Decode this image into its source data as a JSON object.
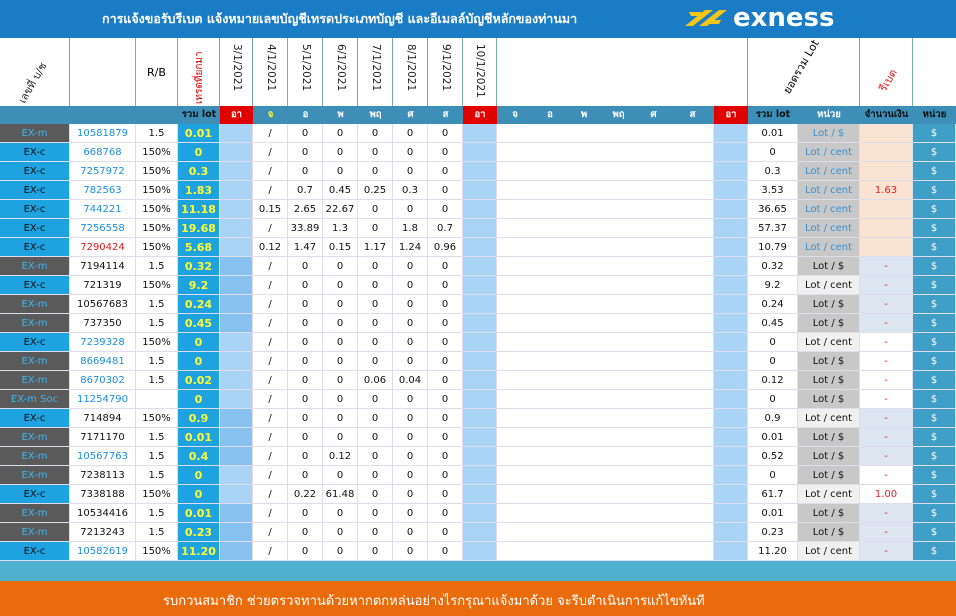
{
  "banner": {
    "title": "การแจ้งขอรับรีเบต  แจ้งหมายเลขบัญชีเทรดประเภทบัญชี และอีเมลล์บัญชีหลักของท่านมา",
    "logo_text": "exness"
  },
  "header": {
    "account_label": "เลขที่ บ/ช",
    "rb_label": "R/B",
    "previous_label": "เทรดที่ยกมา",
    "dates": [
      "3/1/2021",
      "4/1/2021",
      "5/1/2021",
      "6/1/2021",
      "7/1/2021",
      "8/1/2021",
      "9/1/2021",
      "10/1/2021"
    ],
    "total_lot_label": "ยอดรวม Lot",
    "rebate_label": "รีเบต"
  },
  "subheader": {
    "total_lot": "รวม lot",
    "days_week1": [
      "อา",
      "จ",
      "อ",
      "พ",
      "พฤ",
      "ศ",
      "ส"
    ],
    "days_week2": [
      "อา",
      "จ",
      "อ",
      "พ",
      "พฤ",
      "ศ",
      "ส"
    ],
    "day_end": "อา",
    "total_lot2": "รวม lot",
    "unit": "หน่วย",
    "amount": "จำนวนเงิน",
    "unit2": "หน่วย"
  },
  "rows": [
    {
      "type": "EX-m",
      "acct": "10581879",
      "rb": "1.5",
      "total": "0.01",
      "d": [
        "/",
        "0",
        "0",
        "0",
        "0",
        "0"
      ],
      "sum": "0.01",
      "unit": "Lot / $",
      "amount": "",
      "cur": "$",
      "dark": true,
      "blue": true,
      "grp": 1
    },
    {
      "type": "EX-c",
      "acct": "668768",
      "rb": "150%",
      "total": "0",
      "d": [
        "/",
        "0",
        "0",
        "0",
        "0",
        "0"
      ],
      "sum": "0",
      "unit": "Lot / cent",
      "amount": "",
      "cur": "$",
      "dark": false,
      "blue": true,
      "grp": 1
    },
    {
      "type": "EX-c",
      "acct": "7257972",
      "rb": "150%",
      "total": "0.3",
      "d": [
        "/",
        "0",
        "0",
        "0",
        "0",
        "0"
      ],
      "sum": "0.3",
      "unit": "Lot / cent",
      "amount": "",
      "cur": "$",
      "dark": false,
      "blue": true,
      "grp": 1
    },
    {
      "type": "EX-c",
      "acct": "782563",
      "rb": "150%",
      "total": "1.83",
      "d": [
        "/",
        "0.7",
        "0.45",
        "0.25",
        "0.3",
        "0"
      ],
      "sum": "3.53",
      "unit": "Lot / cent",
      "amount": "1.63",
      "cur": "$",
      "dark": false,
      "blue": true,
      "grp": 1
    },
    {
      "type": "EX-c",
      "acct": "744221",
      "rb": "150%",
      "total": "11.18",
      "d": [
        "0.15",
        "2.65",
        "22.67",
        "0",
        "0",
        "0"
      ],
      "sum": "36.65",
      "unit": "Lot / cent",
      "amount": "",
      "cur": "$",
      "dark": false,
      "blue": true,
      "grp": 1
    },
    {
      "type": "EX-c",
      "acct": "7256558",
      "rb": "150%",
      "total": "19.68",
      "d": [
        "/",
        "33.89",
        "1.3",
        "0",
        "1.8",
        "0.7"
      ],
      "sum": "57.37",
      "unit": "Lot / cent",
      "amount": "",
      "cur": "$",
      "dark": false,
      "blue": true,
      "grp": 1
    },
    {
      "type": "EX-c",
      "acct": "7290424",
      "rb": "150%",
      "total": "5.68",
      "d": [
        "0.12",
        "1.47",
        "0.15",
        "1.17",
        "1.24",
        "0.96"
      ],
      "sum": "10.79",
      "unit": "Lot / cent",
      "amount": "",
      "cur": "$",
      "dark": false,
      "blue": false,
      "red": true,
      "grp": 1
    },
    {
      "type": "EX-m",
      "acct": "7194114",
      "rb": "1.5",
      "total": "0.32",
      "d": [
        "/",
        "0",
        "0",
        "0",
        "0",
        "0"
      ],
      "sum": "0.32",
      "unit": "Lot / $",
      "amount": "-",
      "cur": "$",
      "dark": true,
      "blue": false,
      "grp": 2
    },
    {
      "type": "EX-c",
      "acct": "721319",
      "rb": "150%",
      "total": "9.2",
      "d": [
        "/",
        "0",
        "0",
        "0",
        "0",
        "0"
      ],
      "sum": "9.2",
      "unit": "Lot / cent",
      "amount": "-",
      "cur": "$",
      "dark": false,
      "blue": false,
      "grp": 2
    },
    {
      "type": "EX-m",
      "acct": "10567683",
      "rb": "1.5",
      "total": "0.24",
      "d": [
        "/",
        "0",
        "0",
        "0",
        "0",
        "0"
      ],
      "sum": "0.24",
      "unit": "Lot / $",
      "amount": "-",
      "cur": "$",
      "dark": true,
      "blue": false,
      "grp": 2
    },
    {
      "type": "EX-m",
      "acct": "737350",
      "rb": "1.5",
      "total": "0.45",
      "d": [
        "/",
        "0",
        "0",
        "0",
        "0",
        "0"
      ],
      "sum": "0.45",
      "unit": "Lot / $",
      "amount": "-",
      "cur": "$",
      "dark": true,
      "blue": false,
      "grp": 2
    },
    {
      "type": "EX-c",
      "acct": "7239328",
      "rb": "150%",
      "total": "0",
      "d": [
        "/",
        "0",
        "0",
        "0",
        "0",
        "0"
      ],
      "sum": "0",
      "unit": "Lot / cent",
      "amount": "-",
      "cur": "$",
      "dark": false,
      "blue": true,
      "grp": 3
    },
    {
      "type": "EX-m",
      "acct": "8669481",
      "rb": "1.5",
      "total": "0",
      "d": [
        "/",
        "0",
        "0",
        "0",
        "0",
        "0"
      ],
      "sum": "0",
      "unit": "Lot / $",
      "amount": "-",
      "cur": "$",
      "dark": true,
      "blue": true,
      "grp": 3
    },
    {
      "type": "EX-m",
      "acct": "8670302",
      "rb": "1.5",
      "total": "0.02",
      "d": [
        "/",
        "0",
        "0",
        "0.06",
        "0.04",
        "0"
      ],
      "sum": "0.12",
      "unit": "Lot / $",
      "amount": "-",
      "cur": "$",
      "dark": true,
      "blue": true,
      "grp": 3
    },
    {
      "type": "EX-m Soc",
      "acct": "11254790",
      "rb": "",
      "total": "0",
      "d": [
        "/",
        "0",
        "0",
        "0",
        "0",
        "0"
      ],
      "sum": "0",
      "unit": "Lot / $",
      "amount": "-",
      "cur": "$",
      "dark": true,
      "blue": true,
      "grp": 3
    },
    {
      "type": "EX-c",
      "acct": "714894",
      "rb": "150%",
      "total": "0.9",
      "d": [
        "/",
        "0",
        "0",
        "0",
        "0",
        "0"
      ],
      "sum": "0.9",
      "unit": "Lot / cent",
      "amount": "-",
      "cur": "$",
      "dark": false,
      "blue": false,
      "grp": 4
    },
    {
      "type": "EX-m",
      "acct": "7171170",
      "rb": "1.5",
      "total": "0.01",
      "d": [
        "/",
        "0",
        "0",
        "0",
        "0",
        "0"
      ],
      "sum": "0.01",
      "unit": "Lot / $",
      "amount": "-",
      "cur": "$",
      "dark": true,
      "blue": false,
      "grp": 4
    },
    {
      "type": "EX-m",
      "acct": "10567763",
      "rb": "1.5",
      "total": "0.4",
      "d": [
        "/",
        "0",
        "0.12",
        "0",
        "0",
        "0"
      ],
      "sum": "0.52",
      "unit": "Lot / $",
      "amount": "-",
      "cur": "$",
      "dark": true,
      "blue": true,
      "grp": 4
    },
    {
      "type": "EX-m",
      "acct": "7238113",
      "rb": "1.5",
      "total": "0",
      "d": [
        "/",
        "0",
        "0",
        "0",
        "0",
        "0"
      ],
      "sum": "0",
      "unit": "Lot / $",
      "amount": "-",
      "cur": "$",
      "dark": true,
      "blue": false,
      "grp": 5
    },
    {
      "type": "EX-c",
      "acct": "7338188",
      "rb": "150%",
      "total": "0",
      "d": [
        "/",
        "0.22",
        "61.48",
        "0",
        "0",
        "0"
      ],
      "sum": "61.7",
      "unit": "Lot / cent",
      "amount": "1.00",
      "cur": "$",
      "dark": false,
      "blue": false,
      "grp": 5
    },
    {
      "type": "EX-m",
      "acct": "10534416",
      "rb": "1.5",
      "total": "0.01",
      "d": [
        "/",
        "0",
        "0",
        "0",
        "0",
        "0"
      ],
      "sum": "0.01",
      "unit": "Lot / $",
      "amount": "-",
      "cur": "$",
      "dark": true,
      "blue": false,
      "grp": 6
    },
    {
      "type": "EX-m",
      "acct": "7213243",
      "rb": "1.5",
      "total": "0.23",
      "d": [
        "/",
        "0",
        "0",
        "0",
        "0",
        "0"
      ],
      "sum": "0.23",
      "unit": "Lot / $",
      "amount": "-",
      "cur": "$",
      "dark": true,
      "blue": false,
      "grp": 6
    },
    {
      "type": "EX-c",
      "acct": "10582619",
      "rb": "150%",
      "total": "11.20",
      "d": [
        "/",
        "0",
        "0",
        "0",
        "0",
        "0"
      ],
      "sum": "11.20",
      "unit": "Lot / cent",
      "amount": "-",
      "cur": "$",
      "dark": false,
      "blue": true,
      "grp": 6
    }
  ],
  "footer": {
    "text": "รบกวนสมาชิก ช่วยตรวจทานด้วยหากตกหล่นอย่างไรกรุณาแจ้งมาด้วย จะรีบดำเนินการแก้ไขทันที"
  },
  "colors": {
    "banner": "#1a7cc4",
    "footer": "#e96b0b",
    "dark_cell": "#5a5a5a",
    "cyan_cell": "#1fa2e0",
    "total_yellow": "#ffff33",
    "red_text": "#e02020"
  }
}
